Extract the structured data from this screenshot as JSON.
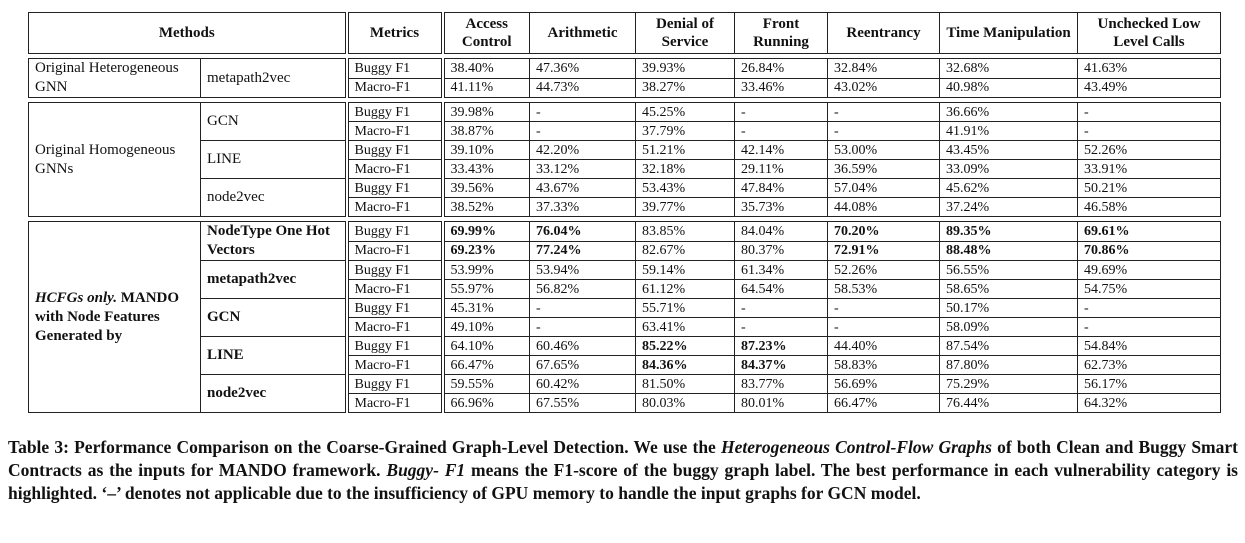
{
  "table": {
    "header": {
      "methods": "Methods",
      "metrics": "Metrics",
      "categories": [
        "Access Control",
        "Arithmetic",
        "Denial of Service",
        "Front Running",
        "Reentrancy",
        "Time Manipulation",
        "Unchecked Low Level Calls"
      ]
    },
    "groups": [
      {
        "label": "Original Heterogeneous GNN",
        "emphasis": false,
        "methods": [
          {
            "name": "metapath2vec",
            "rows": [
              {
                "metric": "Buggy F1",
                "values": [
                  "38.40%",
                  "47.36%",
                  "39.93%",
                  "26.84%",
                  "32.84%",
                  "32.68%",
                  "41.63%"
                ],
                "bold": []
              },
              {
                "metric": "Macro-F1",
                "values": [
                  "41.11%",
                  "44.73%",
                  "38.27%",
                  "33.46%",
                  "43.02%",
                  "40.98%",
                  "43.49%"
                ],
                "bold": []
              }
            ]
          }
        ]
      },
      {
        "label": "Original Homogeneous GNNs",
        "emphasis": false,
        "methods": [
          {
            "name": "GCN",
            "rows": [
              {
                "metric": "Buggy F1",
                "values": [
                  "39.98%",
                  "-",
                  "45.25%",
                  "-",
                  "-",
                  "36.66%",
                  "-"
                ],
                "bold": []
              },
              {
                "metric": "Macro-F1",
                "values": [
                  "38.87%",
                  "-",
                  "37.79%",
                  "-",
                  "-",
                  "41.91%",
                  "-"
                ],
                "bold": []
              }
            ]
          },
          {
            "name": "LINE",
            "rows": [
              {
                "metric": "Buggy F1",
                "values": [
                  "39.10%",
                  "42.20%",
                  "51.21%",
                  "42.14%",
                  "53.00%",
                  "43.45%",
                  "52.26%"
                ],
                "bold": []
              },
              {
                "metric": "Macro-F1",
                "values": [
                  "33.43%",
                  "33.12%",
                  "32.18%",
                  "29.11%",
                  "36.59%",
                  "33.09%",
                  "33.91%"
                ],
                "bold": []
              }
            ]
          },
          {
            "name": "node2vec",
            "rows": [
              {
                "metric": "Buggy F1",
                "values": [
                  "39.56%",
                  "43.67%",
                  "53.43%",
                  "47.84%",
                  "57.04%",
                  "45.62%",
                  "50.21%"
                ],
                "bold": []
              },
              {
                "metric": "Macro-F1",
                "values": [
                  "38.52%",
                  "37.33%",
                  "39.77%",
                  "35.73%",
                  "44.08%",
                  "37.24%",
                  "46.58%"
                ],
                "bold": []
              }
            ]
          }
        ]
      },
      {
        "label_lead": "HCFGs only.",
        "label": "MANDO with Node Features Generated by",
        "emphasis": true,
        "methods": [
          {
            "name": "NodeType One Hot Vectors",
            "rows": [
              {
                "metric": "Buggy F1",
                "values": [
                  "69.99%",
                  "76.04%",
                  "83.85%",
                  "84.04%",
                  "70.20%",
                  "89.35%",
                  "69.61%"
                ],
                "bold": [
                  0,
                  1,
                  4,
                  5,
                  6
                ]
              },
              {
                "metric": "Macro-F1",
                "values": [
                  "69.23%",
                  "77.24%",
                  "82.67%",
                  "80.37%",
                  "72.91%",
                  "88.48%",
                  "70.86%"
                ],
                "bold": [
                  0,
                  1,
                  4,
                  5,
                  6
                ]
              }
            ]
          },
          {
            "name": "metapath2vec",
            "rows": [
              {
                "metric": "Buggy F1",
                "values": [
                  "53.99%",
                  "53.94%",
                  "59.14%",
                  "61.34%",
                  "52.26%",
                  "56.55%",
                  "49.69%"
                ],
                "bold": []
              },
              {
                "metric": "Macro-F1",
                "values": [
                  "55.97%",
                  "56.82%",
                  "61.12%",
                  "64.54%",
                  "58.53%",
                  "58.65%",
                  "54.75%"
                ],
                "bold": []
              }
            ]
          },
          {
            "name": "GCN",
            "rows": [
              {
                "metric": "Buggy F1",
                "values": [
                  "45.31%",
                  "-",
                  "55.71%",
                  "-",
                  "-",
                  "50.17%",
                  "-"
                ],
                "bold": []
              },
              {
                "metric": "Macro-F1",
                "values": [
                  "49.10%",
                  "-",
                  "63.41%",
                  "-",
                  "-",
                  "58.09%",
                  "-"
                ],
                "bold": []
              }
            ]
          },
          {
            "name": "LINE",
            "rows": [
              {
                "metric": "Buggy F1",
                "values": [
                  "64.10%",
                  "60.46%",
                  "85.22%",
                  "87.23%",
                  "44.40%",
                  "87.54%",
                  "54.84%"
                ],
                "bold": [
                  2,
                  3
                ]
              },
              {
                "metric": "Macro-F1",
                "values": [
                  "66.47%",
                  "67.65%",
                  "84.36%",
                  "84.37%",
                  "58.83%",
                  "87.80%",
                  "62.73%"
                ],
                "bold": [
                  2,
                  3
                ]
              }
            ]
          },
          {
            "name": "node2vec",
            "rows": [
              {
                "metric": "Buggy F1",
                "values": [
                  "59.55%",
                  "60.42%",
                  "81.50%",
                  "83.77%",
                  "56.69%",
                  "75.29%",
                  "56.17%"
                ],
                "bold": []
              },
              {
                "metric": "Macro-F1",
                "values": [
                  "66.96%",
                  "67.55%",
                  "80.03%",
                  "80.01%",
                  "66.47%",
                  "76.44%",
                  "64.32%"
                ],
                "bold": []
              }
            ]
          }
        ]
      }
    ]
  },
  "caption": {
    "segments": [
      {
        "text": "Table 3: Performance Comparison on the Coarse-Grained Graph-Level Detection. We use the ",
        "italic": false
      },
      {
        "text": "Heterogeneous Control-Flow Graphs",
        "italic": true
      },
      {
        "text": " of both Clean and Buggy Smart Contracts as the inputs for MANDO framework. ",
        "italic": false
      },
      {
        "text": "Buggy- F1",
        "italic": true
      },
      {
        "text": " means the F1-score of the buggy graph label. The best performance in each vulnerability category is highlighted. ‘–’ denotes not applicable due to the insufficiency of GPU memory to handle the input graphs for GCN model.",
        "italic": false
      }
    ]
  }
}
